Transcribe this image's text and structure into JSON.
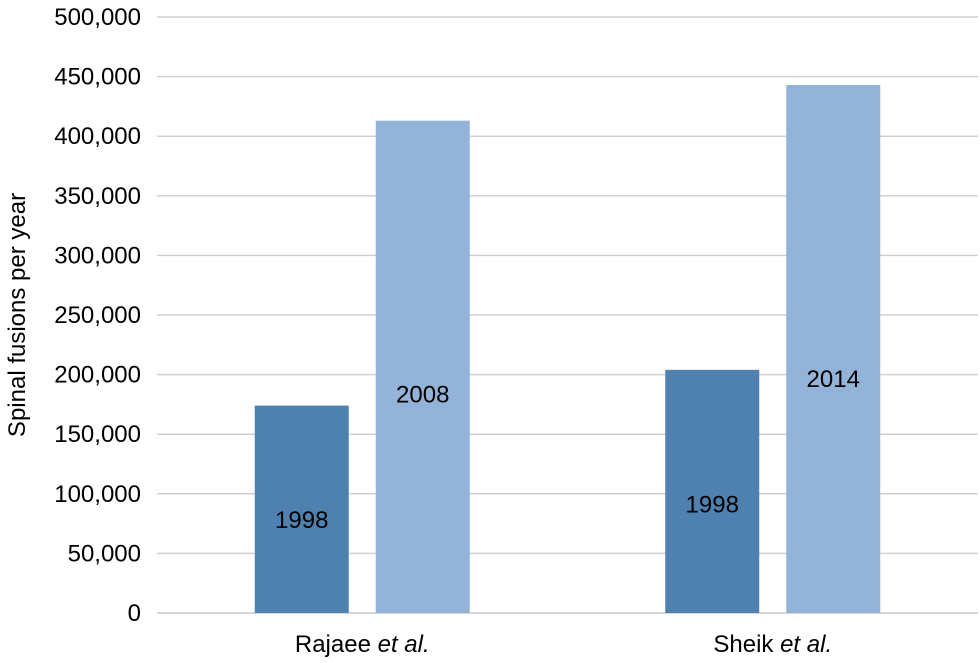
{
  "chart_data": {
    "type": "bar",
    "categories": [
      {
        "name": "Rajaee",
        "suffix": "et al."
      },
      {
        "name": "Sheik",
        "suffix": "et al."
      }
    ],
    "bars": [
      {
        "category": 0,
        "label": "1998",
        "value": 174000,
        "color": "#4e81b0"
      },
      {
        "category": 0,
        "label": "2008",
        "value": 413000,
        "color": "#93b3d8"
      },
      {
        "category": 1,
        "label": "1998",
        "value": 204000,
        "color": "#4e81b0"
      },
      {
        "category": 1,
        "label": "2014",
        "value": 443000,
        "color": "#93b3d8"
      }
    ],
    "ylabel": "Spinal fusions per year",
    "ylim": [
      0,
      500000
    ],
    "yticks": [
      0,
      50000,
      100000,
      150000,
      200000,
      250000,
      300000,
      350000,
      400000,
      450000,
      500000
    ],
    "grid": true
  }
}
